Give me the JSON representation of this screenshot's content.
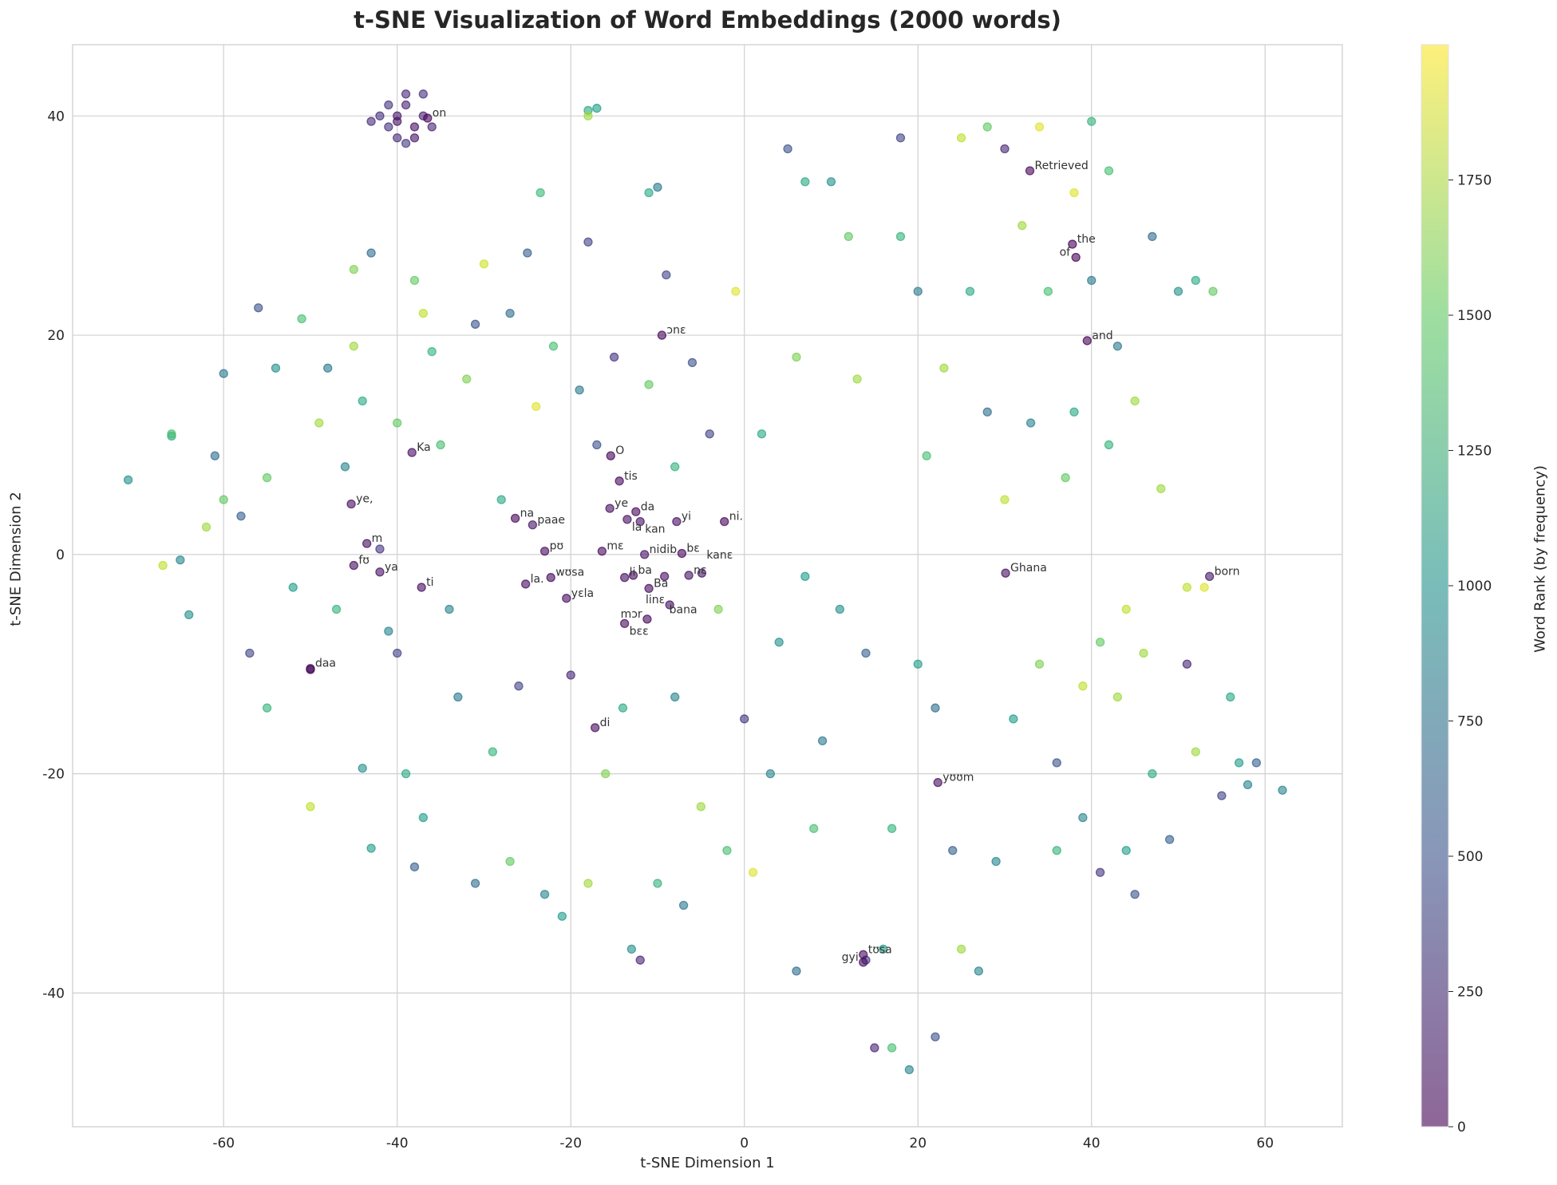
{
  "chart_data": {
    "type": "scatter",
    "title": "t-SNE Visualization of Word Embeddings (2000 words)",
    "xlabel": "t-SNE Dimension 1",
    "ylabel": "t-SNE Dimension 2",
    "xlim": [
      -77.4,
      68.9
    ],
    "ylim": [
      -52.2,
      46.5
    ],
    "xticks": [
      -60,
      -40,
      -20,
      0,
      20,
      40,
      60
    ],
    "yticks": [
      -40,
      -20,
      0,
      20,
      40
    ],
    "grid": true,
    "colormap": "viridis",
    "alpha": 0.6,
    "colorbar": {
      "label": "Word Rank (by frequency)",
      "range": [
        0,
        2000
      ],
      "ticks": [
        0,
        250,
        500,
        750,
        1000,
        1250,
        1500,
        1750
      ]
    },
    "labeled_words": [
      {
        "text": "on",
        "x": -36.5,
        "y": 39.8,
        "rank": 30
      },
      {
        "text": "Ka",
        "x": -38.3,
        "y": 9.3,
        "rank": 80
      },
      {
        "text": "ye,",
        "x": -45.3,
        "y": 4.6,
        "rank": 60
      },
      {
        "text": "m",
        "x": -43.5,
        "y": 1.0,
        "rank": 50
      },
      {
        "text": "fʊ",
        "x": -45,
        "y": -1.0,
        "rank": 70
      },
      {
        "text": "ya",
        "x": -42,
        "y": -1.6,
        "rank": 90
      },
      {
        "text": "ti",
        "x": -37.2,
        "y": -3.0,
        "rank": 60
      },
      {
        "text": "daa",
        "x": -50,
        "y": -10.4,
        "rank": 40
      },
      {
        "text": "na",
        "x": -26.4,
        "y": 3.3,
        "rank": 20
      },
      {
        "text": "paae",
        "x": -24.4,
        "y": 2.7,
        "rank": 110
      },
      {
        "text": "pʊ",
        "x": -23,
        "y": 0.3,
        "rank": 50
      },
      {
        "text": "la.",
        "x": -25.2,
        "y": -2.7,
        "rank": 60
      },
      {
        "text": "wʊsa",
        "x": -22.3,
        "y": -2.1,
        "rank": 40
      },
      {
        "text": "yɛla",
        "x": -20.5,
        "y": -4.0,
        "rank": 60
      },
      {
        "text": "ɔnɛ",
        "x": -9.5,
        "y": 20.0,
        "rank": 30
      },
      {
        "text": "O",
        "x": -15.4,
        "y": 9.0,
        "rank": 20
      },
      {
        "text": "tis",
        "x": -14.4,
        "y": 6.7,
        "rank": 50
      },
      {
        "text": "ye",
        "x": -15.5,
        "y": 4.2,
        "rank": 60
      },
      {
        "text": "da",
        "x": -12.5,
        "y": 3.9,
        "rank": 40
      },
      {
        "text": "la",
        "x": -13.5,
        "y": 3.2,
        "rank": 70
      },
      {
        "text": "kan",
        "x": -12,
        "y": 3.0,
        "rank": 80
      },
      {
        "text": "yi",
        "x": -7.8,
        "y": 3.0,
        "rank": 60
      },
      {
        "text": "ni.",
        "x": -2.3,
        "y": 3.0,
        "rank": 20
      },
      {
        "text": "mɛ",
        "x": -16.4,
        "y": 0.3,
        "rank": 50
      },
      {
        "text": "nidib",
        "x": -11.5,
        "y": 0.0,
        "rank": 100
      },
      {
        "text": "bɛ",
        "x": -7.2,
        "y": 0.1,
        "rank": 30
      },
      {
        "text": "ba",
        "x": -12.8,
        "y": -1.9,
        "rank": 50
      },
      {
        "text": "li",
        "x": -13.8,
        "y": -2.1,
        "rank": 70
      },
      {
        "text": "Ba",
        "x": -11,
        "y": -3.1,
        "rank": 60
      },
      {
        "text": "bana",
        "x": -9.2,
        "y": -2.0,
        "rank": 80
      },
      {
        "text": "nɛ",
        "x": -6.4,
        "y": -1.9,
        "rank": 90
      },
      {
        "text": "kanɛ",
        "x": -4.9,
        "y": -1.7,
        "rank": 110
      },
      {
        "text": "linɛ",
        "x": -8.6,
        "y": -4.6,
        "rank": 70
      },
      {
        "text": "mɔr",
        "x": -11.2,
        "y": -5.9,
        "rank": 30
      },
      {
        "text": "bɛɛ",
        "x": -13.8,
        "y": -6.3,
        "rank": 60
      },
      {
        "text": "di",
        "x": -17.2,
        "y": -15.8,
        "rank": 60
      },
      {
        "text": "Retrieved",
        "x": 32.9,
        "y": 35.0,
        "rank": 20
      },
      {
        "text": "the",
        "x": 37.8,
        "y": 28.3,
        "rank": 0
      },
      {
        "text": "of",
        "x": 38.2,
        "y": 27.1,
        "rank": 2
      },
      {
        "text": "and",
        "x": 39.5,
        "y": 19.5,
        "rank": 3
      },
      {
        "text": "Ghana",
        "x": 30.1,
        "y": -1.7,
        "rank": 70
      },
      {
        "text": "born",
        "x": 53.6,
        "y": -2.0,
        "rank": 120
      },
      {
        "text": "yʊʊm",
        "x": 22.3,
        "y": -20.8,
        "rank": 60
      },
      {
        "text": "tʊsa",
        "x": 13.7,
        "y": -36.5,
        "rank": 60
      },
      {
        "text": "gyi",
        "x": 13.7,
        "y": -37.2,
        "rank": 60
      }
    ],
    "points": [
      [
        -40,
        40,
        150
      ],
      [
        -39,
        41,
        200
      ],
      [
        -38,
        39,
        100
      ],
      [
        -41,
        39,
        300
      ],
      [
        -40,
        38,
        250
      ],
      [
        -37,
        40,
        180
      ],
      [
        -39,
        42,
        220
      ],
      [
        -42,
        40,
        260
      ],
      [
        -38,
        38,
        120
      ],
      [
        -36,
        39,
        200
      ],
      [
        -40,
        39.5,
        90
      ],
      [
        -41,
        41,
        310
      ],
      [
        -37,
        42,
        280
      ],
      [
        -39,
        37.5,
        330
      ],
      [
        -43,
        39.5,
        240
      ],
      [
        -18,
        40.5,
        1200
      ],
      [
        -17,
        40.7,
        1100
      ],
      [
        -18,
        40,
        1700
      ],
      [
        -23.5,
        33,
        1350
      ],
      [
        -11,
        33,
        1200
      ],
      [
        -10,
        33.5,
        800
      ],
      [
        -71,
        6.8,
        1000
      ],
      [
        -67,
        -1,
        1800
      ],
      [
        -66,
        10.8,
        1250
      ],
      [
        -66,
        11,
        1400
      ],
      [
        -65,
        -0.5,
        900
      ],
      [
        -64,
        -5.5,
        1000
      ],
      [
        -62,
        2.5,
        1700
      ],
      [
        -61,
        9,
        700
      ],
      [
        -60,
        5,
        1500
      ],
      [
        -60,
        16.5,
        800
      ],
      [
        -58,
        3.5,
        600
      ],
      [
        -57,
        -9,
        400
      ],
      [
        -56,
        22.5,
        500
      ],
      [
        -55,
        -14,
        1300
      ],
      [
        -55,
        7,
        1500
      ],
      [
        -54,
        17,
        1000
      ],
      [
        -52,
        -3,
        1100
      ],
      [
        -51,
        21.5,
        1400
      ],
      [
        -50,
        -23,
        1800
      ],
      [
        -50,
        -10.5,
        40
      ],
      [
        -49,
        12,
        1700
      ],
      [
        -48,
        17,
        800
      ],
      [
        -47,
        -5,
        1300
      ],
      [
        -46,
        8,
        900
      ],
      [
        -45,
        26,
        1600
      ],
      [
        -45,
        19,
        1700
      ],
      [
        -44,
        14,
        1200
      ],
      [
        -44,
        -19.5,
        1000
      ],
      [
        -43,
        27.5,
        700
      ],
      [
        -43,
        -26.8,
        1100
      ],
      [
        -42,
        0.5,
        300
      ],
      [
        -41,
        -7,
        900
      ],
      [
        -40,
        12,
        1500
      ],
      [
        -40,
        -9,
        400
      ],
      [
        -39,
        -20,
        1200
      ],
      [
        -38,
        -28.5,
        600
      ],
      [
        -38,
        25,
        1500
      ],
      [
        -37,
        22,
        1800
      ],
      [
        -37,
        -24,
        1100
      ],
      [
        -36,
        18.5,
        1300
      ],
      [
        -35,
        10,
        1400
      ],
      [
        -34,
        -5,
        900
      ],
      [
        -33,
        -13,
        800
      ],
      [
        -32,
        16,
        1600
      ],
      [
        -31,
        21,
        500
      ],
      [
        -31,
        -30,
        700
      ],
      [
        -30,
        26.5,
        1850
      ],
      [
        -29,
        -18,
        1300
      ],
      [
        -28,
        5,
        1200
      ],
      [
        -27,
        22,
        700
      ],
      [
        -27,
        -28,
        1500
      ],
      [
        -26,
        -12,
        400
      ],
      [
        -25,
        27.5,
        600
      ],
      [
        -24,
        13.5,
        1900
      ],
      [
        -23,
        -31,
        900
      ],
      [
        -22,
        19,
        1400
      ],
      [
        -21,
        -33,
        1100
      ],
      [
        -20,
        -11,
        200
      ],
      [
        -19,
        15,
        800
      ],
      [
        -18,
        28.5,
        400
      ],
      [
        -18,
        -30,
        1700
      ],
      [
        -17,
        10,
        500
      ],
      [
        -16,
        -20,
        1600
      ],
      [
        -15,
        18,
        300
      ],
      [
        -14,
        -14,
        1200
      ],
      [
        -13,
        -36,
        1000
      ],
      [
        -12,
        -37,
        200
      ],
      [
        -11,
        15.5,
        1500
      ],
      [
        -10,
        -30,
        1300
      ],
      [
        -9,
        25.5,
        400
      ],
      [
        -8,
        8,
        1300
      ],
      [
        -8,
        -13,
        900
      ],
      [
        -7,
        -32,
        800
      ],
      [
        -6,
        17.5,
        500
      ],
      [
        -5,
        -23,
        1700
      ],
      [
        -4,
        11,
        400
      ],
      [
        -3,
        -5,
        1600
      ],
      [
        -2,
        -27,
        1400
      ],
      [
        -1,
        24,
        1900
      ],
      [
        0,
        -15,
        300
      ],
      [
        1,
        -29,
        1900
      ],
      [
        2,
        11,
        1200
      ],
      [
        3,
        -20,
        900
      ],
      [
        4,
        -8,
        1000
      ],
      [
        5,
        37,
        500
      ],
      [
        6,
        18,
        1600
      ],
      [
        6,
        -38,
        700
      ],
      [
        7,
        34,
        1200
      ],
      [
        7,
        -2,
        1100
      ],
      [
        8,
        -25,
        1400
      ],
      [
        9,
        -17,
        800
      ],
      [
        10,
        34,
        1000
      ],
      [
        11,
        -5,
        1000
      ],
      [
        12,
        29,
        1500
      ],
      [
        13,
        16,
        1700
      ],
      [
        14,
        -9,
        600
      ],
      [
        14,
        -37,
        300
      ],
      [
        15,
        -45,
        200
      ],
      [
        16,
        -36,
        1100
      ],
      [
        17,
        -25,
        1300
      ],
      [
        17,
        -45,
        1400
      ],
      [
        18,
        29,
        1300
      ],
      [
        18,
        38,
        400
      ],
      [
        19,
        -47,
        900
      ],
      [
        20,
        24,
        800
      ],
      [
        20,
        -10,
        1100
      ],
      [
        21,
        9,
        1400
      ],
      [
        22,
        -14,
        700
      ],
      [
        22,
        -44,
        500
      ],
      [
        23,
        17,
        1700
      ],
      [
        24,
        -27,
        600
      ],
      [
        25,
        38,
        1800
      ],
      [
        25,
        -36,
        1700
      ],
      [
        26,
        24,
        1200
      ],
      [
        27,
        -38,
        900
      ],
      [
        28,
        39,
        1500
      ],
      [
        28,
        13,
        700
      ],
      [
        29,
        -28,
        900
      ],
      [
        30,
        37,
        200
      ],
      [
        30,
        5,
        1800
      ],
      [
        31,
        -15,
        1100
      ],
      [
        32,
        30,
        1700
      ],
      [
        33,
        12,
        900
      ],
      [
        34,
        39,
        1900
      ],
      [
        34,
        -10,
        1600
      ],
      [
        35,
        24,
        1400
      ],
      [
        36,
        -27,
        1300
      ],
      [
        36,
        -19,
        500
      ],
      [
        37,
        7,
        1500
      ],
      [
        38,
        33,
        1900
      ],
      [
        38,
        13,
        1200
      ],
      [
        39,
        -24,
        900
      ],
      [
        39,
        -12,
        1800
      ],
      [
        40,
        39.5,
        1300
      ],
      [
        40,
        25,
        800
      ],
      [
        41,
        -29,
        300
      ],
      [
        41,
        -8,
        1500
      ],
      [
        42,
        10,
        1300
      ],
      [
        42,
        35,
        1400
      ],
      [
        43,
        -13,
        1700
      ],
      [
        43,
        19,
        800
      ],
      [
        44,
        -27,
        1100
      ],
      [
        44,
        -5,
        1800
      ],
      [
        45,
        14,
        1700
      ],
      [
        45,
        -31,
        500
      ],
      [
        46,
        -9,
        1700
      ],
      [
        47,
        29,
        700
      ],
      [
        47,
        -20,
        1200
      ],
      [
        48,
        6,
        1700
      ],
      [
        49,
        -26,
        600
      ],
      [
        50,
        24,
        1000
      ],
      [
        51,
        -3,
        1800
      ],
      [
        51,
        -10,
        200
      ],
      [
        52,
        25,
        1200
      ],
      [
        52,
        -18,
        1700
      ],
      [
        53,
        -3,
        1900
      ],
      [
        54,
        24,
        1500
      ],
      [
        55,
        -22,
        400
      ],
      [
        56,
        -13,
        1200
      ],
      [
        57,
        -19,
        1100
      ],
      [
        58,
        -21,
        900
      ],
      [
        59,
        -19,
        600
      ],
      [
        62,
        -21.5,
        900
      ]
    ]
  }
}
